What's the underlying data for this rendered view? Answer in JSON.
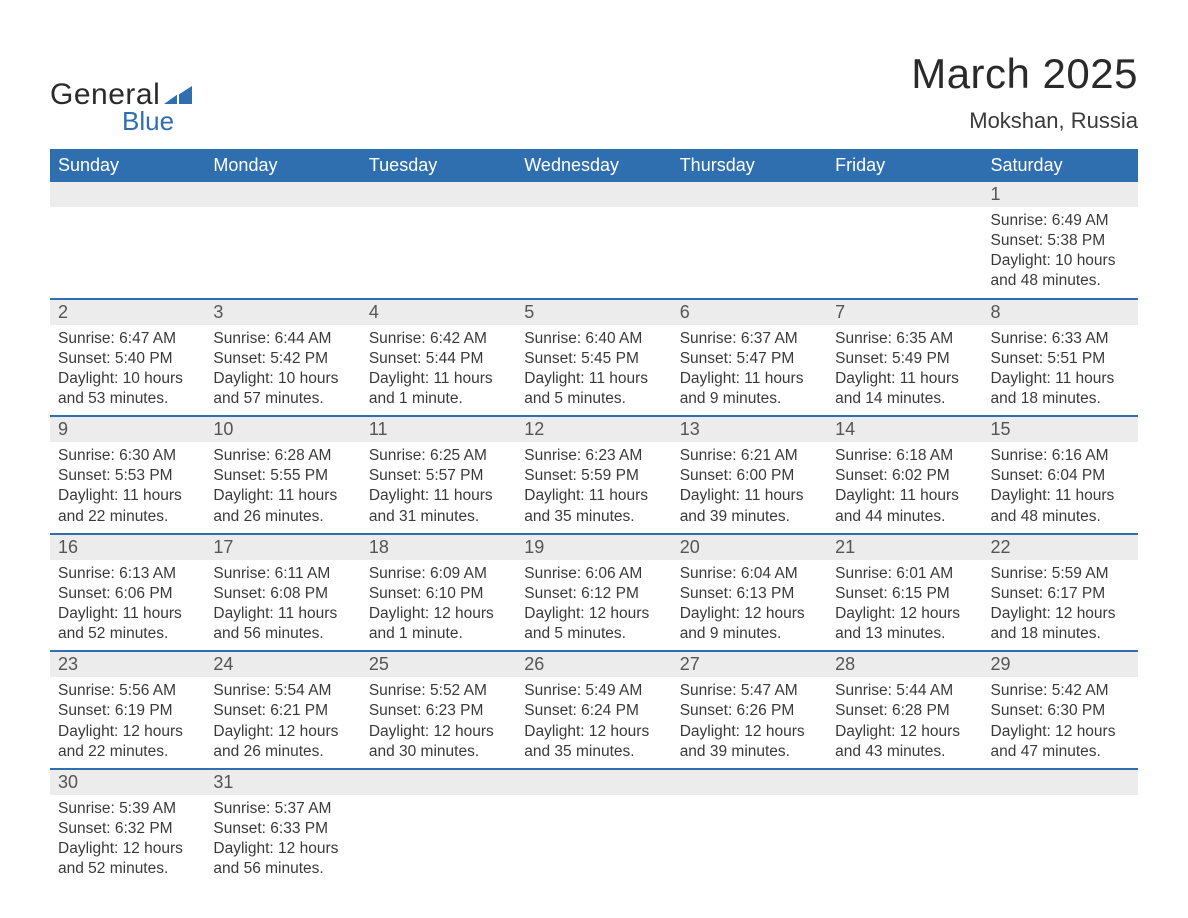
{
  "logo": {
    "text_general": "General",
    "text_blue": "Blue",
    "icon_color": "#2f6fb0"
  },
  "header": {
    "month_title": "March 2025",
    "location": "Mokshan, Russia"
  },
  "colors": {
    "header_bg": "#2f6fb0",
    "header_text": "#ffffff",
    "daynum_bg": "#ececec",
    "row_border": "#2f6fb0",
    "body_text": "#3a3a3a",
    "page_bg": "#ffffff"
  },
  "day_headers": [
    "Sunday",
    "Monday",
    "Tuesday",
    "Wednesday",
    "Thursday",
    "Friday",
    "Saturday"
  ],
  "weeks": [
    {
      "nums": [
        "",
        "",
        "",
        "",
        "",
        "",
        "1"
      ],
      "cells": [
        null,
        null,
        null,
        null,
        null,
        null,
        {
          "sunrise": "Sunrise: 6:49 AM",
          "sunset": "Sunset: 5:38 PM",
          "day1": "Daylight: 10 hours",
          "day2": "and 48 minutes."
        }
      ]
    },
    {
      "nums": [
        "2",
        "3",
        "4",
        "5",
        "6",
        "7",
        "8"
      ],
      "cells": [
        {
          "sunrise": "Sunrise: 6:47 AM",
          "sunset": "Sunset: 5:40 PM",
          "day1": "Daylight: 10 hours",
          "day2": "and 53 minutes."
        },
        {
          "sunrise": "Sunrise: 6:44 AM",
          "sunset": "Sunset: 5:42 PM",
          "day1": "Daylight: 10 hours",
          "day2": "and 57 minutes."
        },
        {
          "sunrise": "Sunrise: 6:42 AM",
          "sunset": "Sunset: 5:44 PM",
          "day1": "Daylight: 11 hours",
          "day2": "and 1 minute."
        },
        {
          "sunrise": "Sunrise: 6:40 AM",
          "sunset": "Sunset: 5:45 PM",
          "day1": "Daylight: 11 hours",
          "day2": "and 5 minutes."
        },
        {
          "sunrise": "Sunrise: 6:37 AM",
          "sunset": "Sunset: 5:47 PM",
          "day1": "Daylight: 11 hours",
          "day2": "and 9 minutes."
        },
        {
          "sunrise": "Sunrise: 6:35 AM",
          "sunset": "Sunset: 5:49 PM",
          "day1": "Daylight: 11 hours",
          "day2": "and 14 minutes."
        },
        {
          "sunrise": "Sunrise: 6:33 AM",
          "sunset": "Sunset: 5:51 PM",
          "day1": "Daylight: 11 hours",
          "day2": "and 18 minutes."
        }
      ]
    },
    {
      "nums": [
        "9",
        "10",
        "11",
        "12",
        "13",
        "14",
        "15"
      ],
      "cells": [
        {
          "sunrise": "Sunrise: 6:30 AM",
          "sunset": "Sunset: 5:53 PM",
          "day1": "Daylight: 11 hours",
          "day2": "and 22 minutes."
        },
        {
          "sunrise": "Sunrise: 6:28 AM",
          "sunset": "Sunset: 5:55 PM",
          "day1": "Daylight: 11 hours",
          "day2": "and 26 minutes."
        },
        {
          "sunrise": "Sunrise: 6:25 AM",
          "sunset": "Sunset: 5:57 PM",
          "day1": "Daylight: 11 hours",
          "day2": "and 31 minutes."
        },
        {
          "sunrise": "Sunrise: 6:23 AM",
          "sunset": "Sunset: 5:59 PM",
          "day1": "Daylight: 11 hours",
          "day2": "and 35 minutes."
        },
        {
          "sunrise": "Sunrise: 6:21 AM",
          "sunset": "Sunset: 6:00 PM",
          "day1": "Daylight: 11 hours",
          "day2": "and 39 minutes."
        },
        {
          "sunrise": "Sunrise: 6:18 AM",
          "sunset": "Sunset: 6:02 PM",
          "day1": "Daylight: 11 hours",
          "day2": "and 44 minutes."
        },
        {
          "sunrise": "Sunrise: 6:16 AM",
          "sunset": "Sunset: 6:04 PM",
          "day1": "Daylight: 11 hours",
          "day2": "and 48 minutes."
        }
      ]
    },
    {
      "nums": [
        "16",
        "17",
        "18",
        "19",
        "20",
        "21",
        "22"
      ],
      "cells": [
        {
          "sunrise": "Sunrise: 6:13 AM",
          "sunset": "Sunset: 6:06 PM",
          "day1": "Daylight: 11 hours",
          "day2": "and 52 minutes."
        },
        {
          "sunrise": "Sunrise: 6:11 AM",
          "sunset": "Sunset: 6:08 PM",
          "day1": "Daylight: 11 hours",
          "day2": "and 56 minutes."
        },
        {
          "sunrise": "Sunrise: 6:09 AM",
          "sunset": "Sunset: 6:10 PM",
          "day1": "Daylight: 12 hours",
          "day2": "and 1 minute."
        },
        {
          "sunrise": "Sunrise: 6:06 AM",
          "sunset": "Sunset: 6:12 PM",
          "day1": "Daylight: 12 hours",
          "day2": "and 5 minutes."
        },
        {
          "sunrise": "Sunrise: 6:04 AM",
          "sunset": "Sunset: 6:13 PM",
          "day1": "Daylight: 12 hours",
          "day2": "and 9 minutes."
        },
        {
          "sunrise": "Sunrise: 6:01 AM",
          "sunset": "Sunset: 6:15 PM",
          "day1": "Daylight: 12 hours",
          "day2": "and 13 minutes."
        },
        {
          "sunrise": "Sunrise: 5:59 AM",
          "sunset": "Sunset: 6:17 PM",
          "day1": "Daylight: 12 hours",
          "day2": "and 18 minutes."
        }
      ]
    },
    {
      "nums": [
        "23",
        "24",
        "25",
        "26",
        "27",
        "28",
        "29"
      ],
      "cells": [
        {
          "sunrise": "Sunrise: 5:56 AM",
          "sunset": "Sunset: 6:19 PM",
          "day1": "Daylight: 12 hours",
          "day2": "and 22 minutes."
        },
        {
          "sunrise": "Sunrise: 5:54 AM",
          "sunset": "Sunset: 6:21 PM",
          "day1": "Daylight: 12 hours",
          "day2": "and 26 minutes."
        },
        {
          "sunrise": "Sunrise: 5:52 AM",
          "sunset": "Sunset: 6:23 PM",
          "day1": "Daylight: 12 hours",
          "day2": "and 30 minutes."
        },
        {
          "sunrise": "Sunrise: 5:49 AM",
          "sunset": "Sunset: 6:24 PM",
          "day1": "Daylight: 12 hours",
          "day2": "and 35 minutes."
        },
        {
          "sunrise": "Sunrise: 5:47 AM",
          "sunset": "Sunset: 6:26 PM",
          "day1": "Daylight: 12 hours",
          "day2": "and 39 minutes."
        },
        {
          "sunrise": "Sunrise: 5:44 AM",
          "sunset": "Sunset: 6:28 PM",
          "day1": "Daylight: 12 hours",
          "day2": "and 43 minutes."
        },
        {
          "sunrise": "Sunrise: 5:42 AM",
          "sunset": "Sunset: 6:30 PM",
          "day1": "Daylight: 12 hours",
          "day2": "and 47 minutes."
        }
      ]
    },
    {
      "nums": [
        "30",
        "31",
        "",
        "",
        "",
        "",
        ""
      ],
      "cells": [
        {
          "sunrise": "Sunrise: 5:39 AM",
          "sunset": "Sunset: 6:32 PM",
          "day1": "Daylight: 12 hours",
          "day2": "and 52 minutes."
        },
        {
          "sunrise": "Sunrise: 5:37 AM",
          "sunset": "Sunset: 6:33 PM",
          "day1": "Daylight: 12 hours",
          "day2": "and 56 minutes."
        },
        null,
        null,
        null,
        null,
        null
      ]
    }
  ]
}
